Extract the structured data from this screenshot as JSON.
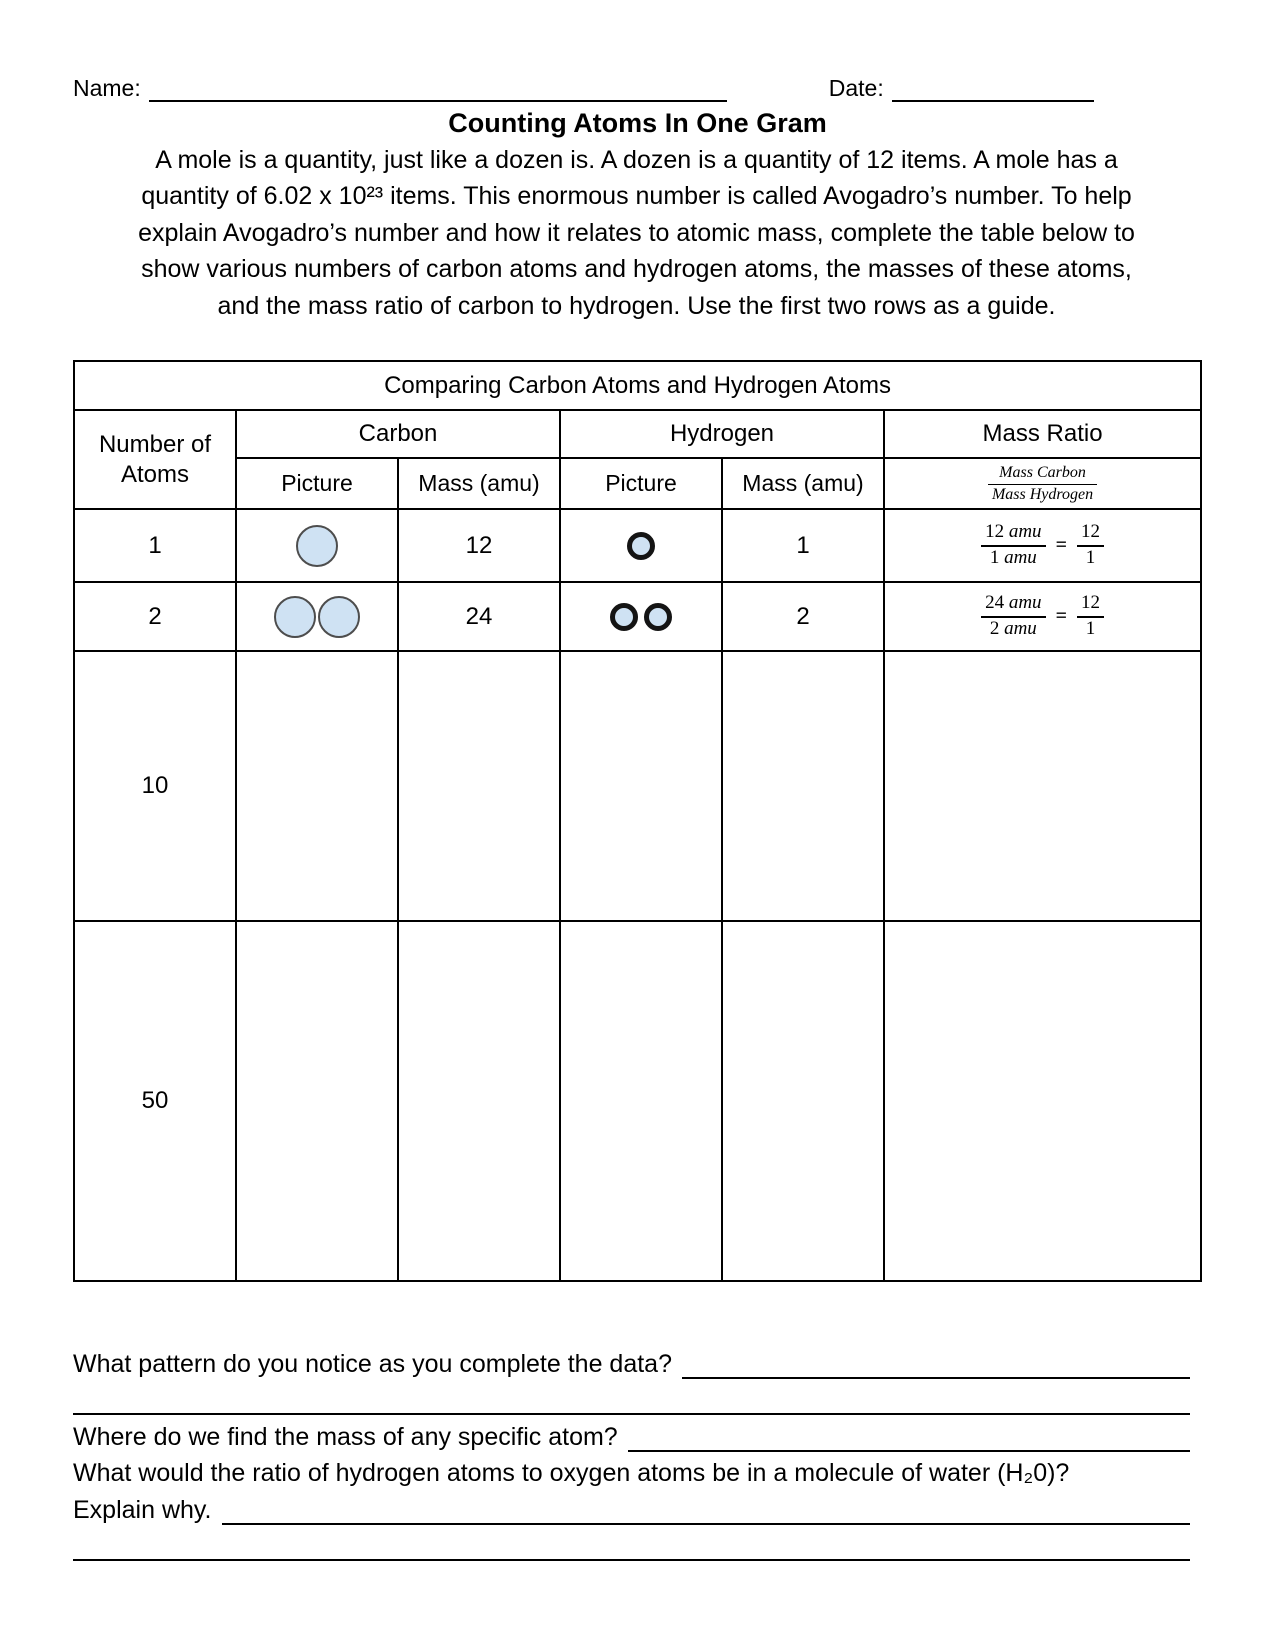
{
  "header": {
    "name_label": "Name:",
    "date_label": "Date:"
  },
  "title": "Counting Atoms In One Gram",
  "intro_lines": [
    "A mole is a quantity, just like a dozen is. A dozen is a quantity of 12 items. A mole has a",
    "quantity of 6.02 x 10²³ items. This enormous number is called Avogadro’s number. To help",
    "explain Avogadro’s number and how it relates to atomic mass, complete the table below to",
    "show various numbers of carbon atoms and hydrogen atoms, the masses of these atoms,",
    "and the mass ratio of carbon to hydrogen. Use the first two rows as a guide."
  ],
  "table": {
    "caption": "Comparing Carbon Atoms and Hydrogen Atoms",
    "headers": {
      "number_of_atoms": "Number of Atoms",
      "carbon": "Carbon",
      "hydrogen": "Hydrogen",
      "mass_ratio": "Mass Ratio",
      "picture": "Picture",
      "mass_amu": "Mass (amu)"
    },
    "ratio_header": {
      "numerator": "Mass Carbon",
      "denominator": "Mass Hydrogen"
    },
    "rows": [
      {
        "count": "1",
        "carbon_pictures": 1,
        "carbon_mass": "12",
        "hydrogen_pictures": 1,
        "hydrogen_mass": "1",
        "ratio": {
          "numerator_value": "12",
          "numerator_unit": "amu",
          "denominator_value": "1",
          "denominator_unit": "amu",
          "equals": "=",
          "result_numerator": "12",
          "result_denominator": "1"
        }
      },
      {
        "count": "2",
        "carbon_pictures": 2,
        "carbon_mass": "24",
        "hydrogen_pictures": 2,
        "hydrogen_mass": "2",
        "ratio": {
          "numerator_value": "24",
          "numerator_unit": "amu",
          "denominator_value": "2",
          "denominator_unit": "amu",
          "equals": "=",
          "result_numerator": "12",
          "result_denominator": "1"
        }
      },
      {
        "count": "10"
      },
      {
        "count": "50"
      }
    ]
  },
  "questions": {
    "q1": "What pattern do you notice as you complete the data?",
    "q2": "Where do we find the mass of any specific atom?",
    "q3": "What would the ratio of hydrogen atoms to oxygen atoms be in a molecule of water (H₂0)?",
    "q4": "Explain why."
  },
  "colors": {
    "atom_fill": "#cfe2f3",
    "carbon_border": "#4d4d4d",
    "hydrogen_border": "#141414"
  }
}
